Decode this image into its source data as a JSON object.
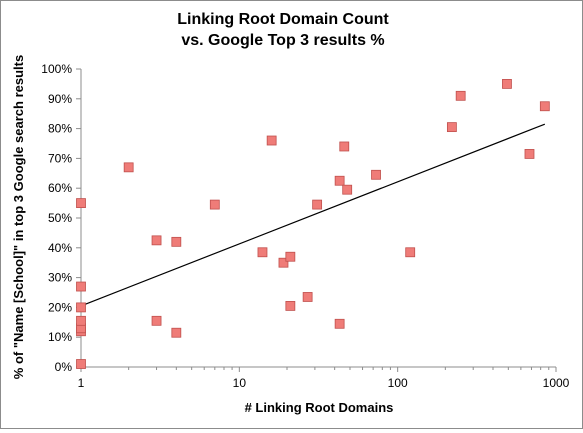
{
  "chart_data": {
    "type": "scatter",
    "title": [
      "Linking Root Domain Count",
      "vs. Google Top 3 results %"
    ],
    "xlabel": "# Linking Root Domains",
    "ylabel": "% of \"Name [School]\" in top 3 Google search results",
    "x_scale": "log",
    "xlim": [
      1,
      1000
    ],
    "ylim": [
      0,
      100
    ],
    "x_ticks": [
      1,
      10,
      100,
      1000
    ],
    "x_tick_labels": [
      "1",
      "10",
      "100",
      "1000"
    ],
    "y_ticks": [
      0,
      10,
      20,
      30,
      40,
      50,
      60,
      70,
      80,
      90,
      100
    ],
    "y_tick_labels": [
      "0%",
      "10%",
      "20%",
      "30%",
      "40%",
      "50%",
      "60%",
      "70%",
      "80%",
      "90%",
      "100%"
    ],
    "grid": false,
    "marker_color": "#ef7c78",
    "marker_edge_color": "#c0504d",
    "trendline": {
      "type": "log",
      "from": [
        1,
        20.5
      ],
      "to": [
        850,
        81.5
      ],
      "color": "#000000"
    },
    "points": [
      {
        "x": 1,
        "y": 1
      },
      {
        "x": 1,
        "y": 12
      },
      {
        "x": 1,
        "y": 13
      },
      {
        "x": 1,
        "y": 15.5
      },
      {
        "x": 1,
        "y": 20
      },
      {
        "x": 1,
        "y": 27
      },
      {
        "x": 1,
        "y": 55
      },
      {
        "x": 2,
        "y": 67
      },
      {
        "x": 3,
        "y": 15.5
      },
      {
        "x": 3,
        "y": 42.5
      },
      {
        "x": 4,
        "y": 11.5
      },
      {
        "x": 4,
        "y": 42
      },
      {
        "x": 7,
        "y": 54.5
      },
      {
        "x": 14,
        "y": 38.5
      },
      {
        "x": 16,
        "y": 76
      },
      {
        "x": 19,
        "y": 35
      },
      {
        "x": 21,
        "y": 20.5
      },
      {
        "x": 21,
        "y": 37
      },
      {
        "x": 27,
        "y": 23.5
      },
      {
        "x": 31,
        "y": 54.5
      },
      {
        "x": 43,
        "y": 14.5
      },
      {
        "x": 43,
        "y": 62.5
      },
      {
        "x": 46,
        "y": 74
      },
      {
        "x": 48,
        "y": 59.5
      },
      {
        "x": 73,
        "y": 64.5
      },
      {
        "x": 120,
        "y": 38.5
      },
      {
        "x": 220,
        "y": 80.5
      },
      {
        "x": 250,
        "y": 91
      },
      {
        "x": 490,
        "y": 95
      },
      {
        "x": 680,
        "y": 71.5
      },
      {
        "x": 850,
        "y": 87.5
      }
    ]
  }
}
